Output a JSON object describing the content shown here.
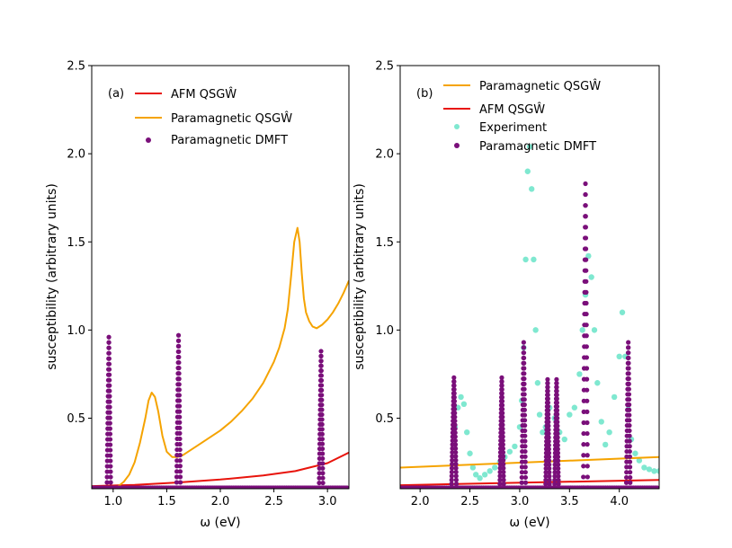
{
  "chart_data": [
    {
      "type": "line",
      "panel_label": "(a)",
      "xlabel": "ω (eV)",
      "ylabel": "susceptibility (arbitrary units)",
      "xlim": [
        0.8,
        3.2
      ],
      "ylim": [
        0.1,
        2.5
      ],
      "xticks": [
        "1.0",
        "1.5",
        "2.0",
        "2.5",
        "3.0"
      ],
      "yticks": [
        "0.5",
        "1.0",
        "1.5",
        "2.0",
        "2.5"
      ],
      "legend": [
        "AFM QSGŴ",
        "Paramagnetic QSGŴ",
        "Paramagnetic DMFT"
      ],
      "series": [
        {
          "name": "AFM QSGŴ",
          "kind": "line",
          "color": "#e8140c",
          "x": [
            0.8,
            1.2,
            1.6,
            2.0,
            2.4,
            2.7,
            3.0,
            3.2
          ],
          "y": [
            0.115,
            0.122,
            0.135,
            0.152,
            0.175,
            0.2,
            0.245,
            0.305
          ]
        },
        {
          "name": "Paramagnetic QSGŴ",
          "kind": "line",
          "color": "#f5a300",
          "x": [
            1.0,
            1.05,
            1.1,
            1.15,
            1.2,
            1.25,
            1.3,
            1.33,
            1.36,
            1.39,
            1.42,
            1.46,
            1.5,
            1.55,
            1.6,
            1.65,
            1.7,
            1.8,
            1.9,
            2.0,
            2.1,
            2.2,
            2.3,
            2.4,
            2.5,
            2.55,
            2.6,
            2.63,
            2.66,
            2.69,
            2.72,
            2.74,
            2.76,
            2.78,
            2.8,
            2.83,
            2.86,
            2.9,
            2.95,
            3.0,
            3.05,
            3.1,
            3.15,
            3.2
          ],
          "y": [
            0.1,
            0.115,
            0.14,
            0.18,
            0.25,
            0.36,
            0.5,
            0.6,
            0.645,
            0.62,
            0.54,
            0.4,
            0.31,
            0.28,
            0.28,
            0.29,
            0.31,
            0.35,
            0.39,
            0.43,
            0.48,
            0.54,
            0.61,
            0.7,
            0.82,
            0.9,
            1.01,
            1.12,
            1.3,
            1.5,
            1.58,
            1.5,
            1.32,
            1.18,
            1.1,
            1.05,
            1.02,
            1.01,
            1.03,
            1.06,
            1.1,
            1.15,
            1.21,
            1.28
          ]
        },
        {
          "name": "Paramagnetic DMFT",
          "kind": "peaks",
          "color": "#7a0f7a",
          "peaks": [
            {
              "center": 0.96,
              "height": 0.96,
              "width": 0.018
            },
            {
              "center": 1.61,
              "height": 0.97,
              "width": 0.018
            },
            {
              "center": 2.94,
              "height": 0.88,
              "width": 0.018
            }
          ]
        }
      ]
    },
    {
      "type": "line",
      "panel_label": "(b)",
      "xlabel": "ω (eV)",
      "ylabel": "susceptibility (arbitrary units)",
      "xlim": [
        1.8,
        4.4
      ],
      "ylim": [
        0.1,
        2.5
      ],
      "xticks": [
        "2.0",
        "2.5",
        "3.0",
        "3.5",
        "4.0"
      ],
      "yticks": [
        "0.5",
        "1.0",
        "1.5",
        "2.0",
        "2.5"
      ],
      "legend": [
        "Paramagnetic QSGŴ",
        "AFM QSGŴ",
        "Experiment",
        "Paramagnetic DMFT"
      ],
      "series": [
        {
          "name": "Paramagnetic QSGŴ",
          "kind": "line",
          "color": "#f5a300",
          "x": [
            1.8,
            4.4
          ],
          "y": [
            0.22,
            0.28
          ]
        },
        {
          "name": "AFM QSGŴ",
          "kind": "line",
          "color": "#e8140c",
          "x": [
            1.8,
            4.4
          ],
          "y": [
            0.12,
            0.15
          ]
        },
        {
          "name": "Experiment",
          "kind": "scatter",
          "color": "#7fe8d0",
          "x": [
            2.35,
            2.38,
            2.41,
            2.44,
            2.47,
            2.5,
            2.53,
            2.56,
            2.6,
            2.65,
            2.7,
            2.75,
            2.8,
            2.85,
            2.9,
            2.95,
            3.0,
            3.02,
            3.04,
            3.06,
            3.08,
            3.1,
            3.12,
            3.14,
            3.16,
            3.18,
            3.2,
            3.23,
            3.26,
            3.3,
            3.35,
            3.4,
            3.45,
            3.5,
            3.55,
            3.6,
            3.63,
            3.66,
            3.69,
            3.72,
            3.75,
            3.78,
            3.82,
            3.86,
            3.9,
            3.95,
            4.0,
            4.03,
            4.06,
            4.09,
            4.12,
            4.16,
            4.2,
            4.25,
            4.3,
            4.35,
            4.4
          ],
          "y": [
            0.45,
            0.56,
            0.62,
            0.58,
            0.42,
            0.3,
            0.22,
            0.18,
            0.16,
            0.18,
            0.2,
            0.22,
            0.25,
            0.28,
            0.31,
            0.34,
            0.45,
            0.6,
            0.9,
            1.4,
            1.9,
            2.04,
            1.8,
            1.4,
            1.0,
            0.7,
            0.52,
            0.42,
            0.45,
            0.56,
            0.5,
            0.42,
            0.38,
            0.52,
            0.56,
            0.75,
            1.0,
            1.2,
            1.42,
            1.3,
            1.0,
            0.7,
            0.48,
            0.35,
            0.42,
            0.62,
            0.85,
            1.1,
            0.85,
            0.55,
            0.38,
            0.3,
            0.26,
            0.22,
            0.21,
            0.2,
            0.2
          ]
        },
        {
          "name": "Paramagnetic DMFT",
          "kind": "peaks",
          "color": "#7a0f7a",
          "peaks": [
            {
              "center": 2.34,
              "height": 0.73,
              "width": 0.025
            },
            {
              "center": 2.82,
              "height": 0.73,
              "width": 0.02
            },
            {
              "center": 3.04,
              "height": 0.93,
              "width": 0.02
            },
            {
              "center": 3.28,
              "height": 0.72,
              "width": 0.02
            },
            {
              "center": 3.37,
              "height": 0.72,
              "width": 0.02
            },
            {
              "center": 3.66,
              "height": 1.83,
              "width": 0.022
            },
            {
              "center": 4.09,
              "height": 0.93,
              "width": 0.02
            }
          ]
        }
      ]
    }
  ]
}
